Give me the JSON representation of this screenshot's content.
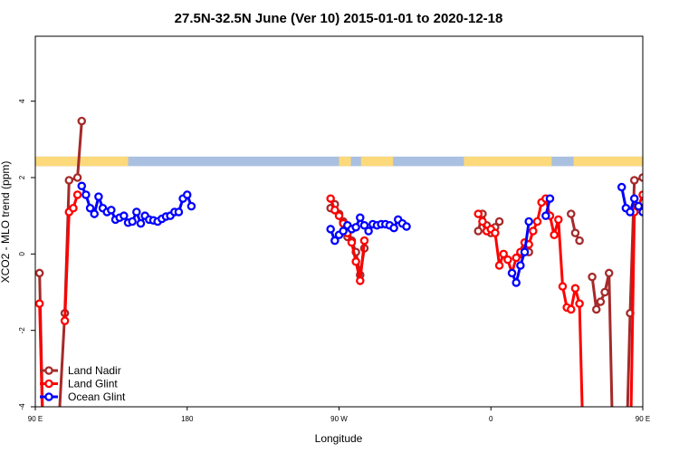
{
  "chart_data": {
    "type": "line",
    "title": "27.5N-32.5N June (Ver 10)   2015-01-01 to 2020-12-18",
    "xlabel": "Longitude",
    "ylabel": "XCO2 - MLO trend (ppm)",
    "xlim": [
      90,
      450
    ],
    "ylim": [
      -4,
      5.7
    ],
    "xticks": [
      {
        "value": 90,
        "label": "90 E"
      },
      {
        "value": 180,
        "label": "180"
      },
      {
        "value": 270,
        "label": "90 W"
      },
      {
        "value": 360,
        "label": "0"
      },
      {
        "value": 450,
        "label": "90 E"
      },
      {
        "value": 540,
        "label": "180"
      }
    ],
    "yticks": [
      {
        "value": -4,
        "label": "-4"
      },
      {
        "value": -2,
        "label": "-2"
      },
      {
        "value": 0,
        "label": "0"
      },
      {
        "value": 2,
        "label": "2"
      },
      {
        "value": 4,
        "label": "4"
      }
    ],
    "legend_position": "bottom-left",
    "land_ocean_mask": {
      "y_range": [
        2.3,
        2.55
      ],
      "ocean_color": "#a9c0e0",
      "land_color": "#fcd97a",
      "land_intervals": [
        [
          90,
          145
        ],
        [
          270,
          277
        ],
        [
          283,
          302
        ],
        [
          344,
          396
        ],
        [
          409,
          450
        ]
      ]
    },
    "series": [
      {
        "name": "Land Nadir",
        "color": "#a52a2a",
        "segments": [
          [
            [
              92.5,
              -0.5
            ],
            [
              95,
              -5.6
            ]
          ],
          [
            [
              102.5,
              -5.6
            ],
            [
              107.5,
              -1.55
            ],
            [
              110,
              1.93
            ],
            [
              115,
              2.0
            ],
            [
              117.5,
              3.48
            ]
          ],
          [
            [
              265,
              1.2
            ],
            [
              267.5,
              1.3
            ],
            [
              270,
              1.05
            ],
            [
              272.5,
              0.85
            ],
            [
              275,
              0.45
            ],
            [
              277.5,
              0.35
            ],
            [
              280,
              0.05
            ],
            [
              282.5,
              -0.55
            ],
            [
              285,
              0.15
            ]
          ],
          [
            [
              352.5,
              0.6
            ],
            [
              355,
              1.05
            ],
            [
              357.5,
              0.75
            ],
            [
              360,
              0.55
            ],
            [
              362.5,
              0.7
            ],
            [
              365,
              0.85
            ]
          ],
          [
            [
              377.5,
              0.0
            ],
            [
              380,
              0.15
            ],
            [
              382.5,
              0.05
            ]
          ],
          [
            [
              407.5,
              1.05
            ],
            [
              410,
              0.55
            ],
            [
              412.5,
              0.35
            ]
          ],
          [
            [
              420,
              -0.6
            ],
            [
              422.5,
              -1.45
            ],
            [
              425,
              -1.25
            ],
            [
              427.5,
              -1.0
            ],
            [
              430,
              -0.5
            ],
            [
              432.5,
              -5.6
            ]
          ],
          [
            [
              440,
              -5.6
            ],
            [
              442.5,
              -1.55
            ],
            [
              445,
              1.93
            ],
            [
              450,
              2.0
            ]
          ]
        ]
      },
      {
        "name": "Land Glint",
        "color": "#ff0000",
        "segments": [
          [
            [
              92.5,
              -1.3
            ],
            [
              95,
              -5.6
            ]
          ],
          [
            [
              107.5,
              -1.75
            ],
            [
              110,
              1.1
            ],
            [
              112.5,
              1.2
            ],
            [
              115,
              1.55
            ]
          ],
          [
            [
              265,
              1.45
            ],
            [
              267.5,
              1.15
            ],
            [
              270,
              1.0
            ],
            [
              272.5,
              0.8
            ],
            [
              275,
              0.55
            ],
            [
              277.5,
              0.3
            ],
            [
              280,
              -0.2
            ],
            [
              282.5,
              -0.7
            ],
            [
              285,
              0.35
            ]
          ],
          [
            [
              352.5,
              1.05
            ],
            [
              355,
              0.85
            ],
            [
              357.5,
              0.6
            ],
            [
              360,
              0.65
            ],
            [
              362.5,
              0.55
            ],
            [
              365,
              -0.3
            ],
            [
              367.5,
              0.0
            ],
            [
              370,
              -0.15
            ],
            [
              372.5,
              -0.5
            ],
            [
              375,
              -0.1
            ],
            [
              377.5,
              0.05
            ],
            [
              380,
              0.3
            ],
            [
              382.5,
              0.25
            ],
            [
              385,
              0.6
            ],
            [
              387.5,
              0.85
            ],
            [
              390,
              1.35
            ],
            [
              392.5,
              1.45
            ],
            [
              395,
              1.0
            ],
            [
              397.5,
              0.5
            ],
            [
              400,
              0.9
            ],
            [
              402.5,
              -0.85
            ],
            [
              405,
              -1.4
            ],
            [
              407.5,
              -1.45
            ],
            [
              410,
              -0.9
            ],
            [
              412.5,
              -1.3
            ],
            [
              415,
              -5.6
            ]
          ],
          [
            [
              442.5,
              -5.6
            ],
            [
              445,
              1.1
            ],
            [
              447.5,
              1.25
            ],
            [
              450,
              1.55
            ]
          ]
        ]
      },
      {
        "name": "Ocean Glint",
        "color": "#0000ff",
        "segments": [
          [
            [
              117.5,
              1.78
            ],
            [
              120,
              1.55
            ],
            [
              122.5,
              1.2
            ],
            [
              125,
              1.05
            ],
            [
              127.5,
              1.5
            ],
            [
              130,
              1.2
            ],
            [
              132.5,
              1.1
            ],
            [
              135,
              1.15
            ],
            [
              137.5,
              0.9
            ],
            [
              140,
              0.95
            ],
            [
              142.5,
              1.0
            ],
            [
              145,
              0.82
            ],
            [
              147.5,
              0.85
            ],
            [
              150,
              1.1
            ],
            [
              152.5,
              0.8
            ],
            [
              155,
              1.0
            ],
            [
              157.5,
              0.9
            ],
            [
              160,
              0.88
            ],
            [
              162.5,
              0.85
            ],
            [
              165,
              0.92
            ],
            [
              167.5,
              0.98
            ],
            [
              170,
              1.0
            ],
            [
              172.5,
              1.1
            ],
            [
              175,
              1.1
            ],
            [
              177.5,
              1.45
            ],
            [
              180,
              1.55
            ],
            [
              182.5,
              1.25
            ]
          ],
          [
            [
              265,
              0.65
            ],
            [
              267.5,
              0.35
            ],
            [
              270,
              0.5
            ],
            [
              272.5,
              0.6
            ],
            [
              275,
              0.75
            ],
            [
              277.5,
              0.65
            ],
            [
              280,
              0.7
            ],
            [
              282.5,
              0.95
            ],
            [
              285,
              0.75
            ],
            [
              287.5,
              0.6
            ],
            [
              290,
              0.78
            ],
            [
              292.5,
              0.75
            ],
            [
              295,
              0.78
            ],
            [
              297.5,
              0.78
            ],
            [
              300,
              0.75
            ],
            [
              302.5,
              0.68
            ],
            [
              305,
              0.9
            ],
            [
              307.5,
              0.8
            ],
            [
              310,
              0.72
            ]
          ],
          [
            [
              372.5,
              -0.5
            ],
            [
              375,
              -0.75
            ],
            [
              377.5,
              -0.3
            ],
            [
              380,
              0.05
            ],
            [
              382.5,
              0.85
            ]
          ],
          [
            [
              392.5,
              1.0
            ],
            [
              395,
              1.45
            ]
          ],
          [
            [
              437.5,
              1.75
            ],
            [
              440,
              1.2
            ],
            [
              442.5,
              1.1
            ],
            [
              445,
              1.45
            ],
            [
              447.5,
              1.25
            ],
            [
              450,
              1.1
            ]
          ]
        ],
        "segments_wrapped": [
          [
            [
              457.5,
              1.75
            ],
            [
              460,
              1.2
            ],
            [
              462.5,
              1.1
            ],
            [
              465,
              1.45
            ],
            [
              467.5,
              1.25
            ],
            [
              470,
              1.1
            ],
            [
              472.5,
              1.15
            ],
            [
              475,
              0.9
            ],
            [
              477.5,
              0.95
            ],
            [
              480,
              1.0
            ],
            [
              482.5,
              0.82
            ],
            [
              485,
              0.85
            ]
          ]
        ]
      }
    ]
  }
}
